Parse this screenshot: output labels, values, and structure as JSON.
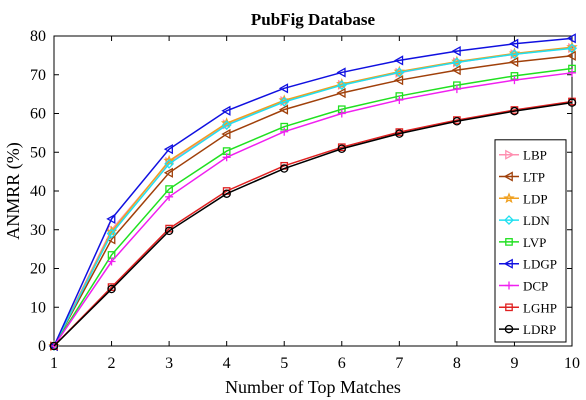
{
  "chart_data": {
    "type": "line",
    "title": "PubFig Database",
    "xlabel": "Number of Top Matches",
    "ylabel": "ANMRR (%)",
    "xlim": [
      1,
      10
    ],
    "ylim": [
      0,
      80
    ],
    "x": [
      1,
      2,
      3,
      4,
      5,
      6,
      7,
      8,
      9,
      10
    ],
    "xticks": [
      1,
      2,
      3,
      4,
      5,
      6,
      7,
      8,
      9,
      10
    ],
    "yticks": [
      0,
      10,
      20,
      30,
      40,
      50,
      60,
      70,
      80
    ],
    "grid": false,
    "box": true,
    "legend_position": "lower-right",
    "series": [
      {
        "name": "LBP",
        "color": "#ff8fb0",
        "marker": "triangle-right",
        "values": [
          0,
          30.0,
          47.5,
          57.2,
          63.2,
          67.4,
          70.5,
          73.2,
          75.3,
          76.9
        ]
      },
      {
        "name": "LTP",
        "color": "#a0400a",
        "marker": "triangle-left",
        "values": [
          0,
          27.5,
          44.7,
          54.7,
          61.0,
          65.3,
          68.6,
          71.2,
          73.3,
          74.9
        ]
      },
      {
        "name": "LDP",
        "color": "#f0a020",
        "marker": "star",
        "values": [
          0,
          29.5,
          47.8,
          57.5,
          63.4,
          67.6,
          70.8,
          73.4,
          75.5,
          77.1
        ]
      },
      {
        "name": "LDN",
        "color": "#20e0f0",
        "marker": "diamond",
        "values": [
          0,
          29.0,
          47.0,
          57.0,
          63.0,
          67.3,
          70.6,
          73.2,
          75.3,
          76.8
        ]
      },
      {
        "name": "LVP",
        "color": "#20e020",
        "marker": "square",
        "values": [
          0,
          23.5,
          40.5,
          50.3,
          56.6,
          61.1,
          64.5,
          67.3,
          69.7,
          71.6
        ]
      },
      {
        "name": "LDGP",
        "color": "#1010e0",
        "marker": "triangle-left",
        "values": [
          0,
          32.8,
          50.8,
          60.7,
          66.5,
          70.6,
          73.7,
          76.1,
          78.0,
          79.4
        ]
      },
      {
        "name": "DCP",
        "color": "#f020f0",
        "marker": "plus",
        "values": [
          0,
          21.8,
          38.5,
          48.7,
          55.3,
          60.0,
          63.5,
          66.3,
          68.6,
          70.5
        ]
      },
      {
        "name": "LGHP",
        "color": "#e02020",
        "marker": "square",
        "values": [
          0,
          15.2,
          30.3,
          40.0,
          46.5,
          51.3,
          55.2,
          58.3,
          60.9,
          63.1
        ]
      },
      {
        "name": "LDRP",
        "color": "#000000",
        "marker": "circle",
        "values": [
          0,
          14.7,
          29.7,
          39.3,
          45.8,
          50.9,
          54.8,
          58.0,
          60.6,
          62.8
        ]
      }
    ]
  }
}
